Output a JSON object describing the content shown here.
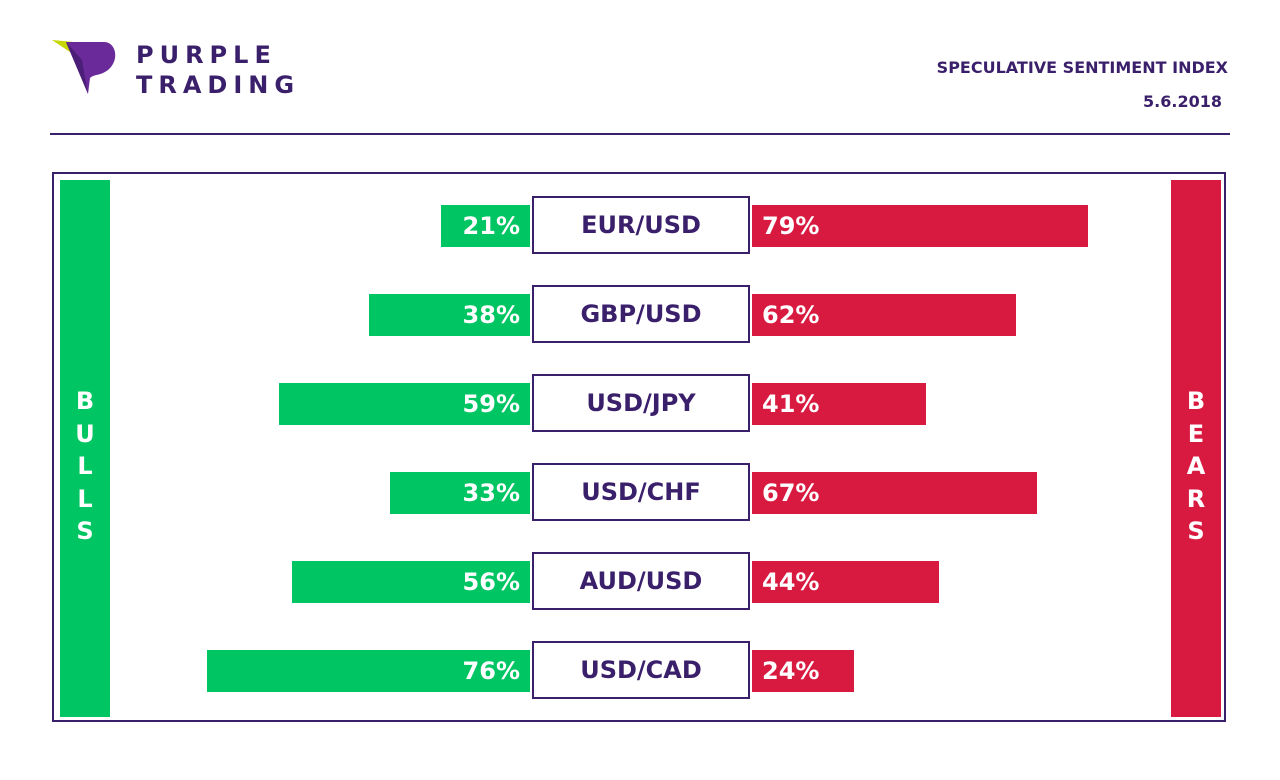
{
  "brand": {
    "line1": "PURPLE",
    "line2": "TRADING"
  },
  "header": {
    "title": "SPECULATIVE SENTIMENT INDEX",
    "date": "5.6.2018"
  },
  "colors": {
    "purple": "#3a1f6b",
    "bulls": "#00c563",
    "bears": "#d91a40",
    "logo_accent": "#c6d600"
  },
  "chart_data": {
    "type": "bar",
    "orientation": "horizontal-diverging",
    "categories": [
      "EUR/USD",
      "GBP/USD",
      "USD/JPY",
      "USD/CHF",
      "AUD/USD",
      "USD/CAD"
    ],
    "series": [
      {
        "name": "BULLS",
        "values": [
          21,
          38,
          59,
          33,
          56,
          76
        ],
        "labels": [
          "21%",
          "38%",
          "59%",
          "33%",
          "56%",
          "76%"
        ]
      },
      {
        "name": "BEARS",
        "values": [
          79,
          62,
          41,
          67,
          44,
          24
        ],
        "labels": [
          "79%",
          "62%",
          "41%",
          "67%",
          "44%",
          "24%"
        ]
      }
    ],
    "unit": "%",
    "xlim": [
      0,
      100
    ],
    "legend": "left-and-right side bars"
  }
}
